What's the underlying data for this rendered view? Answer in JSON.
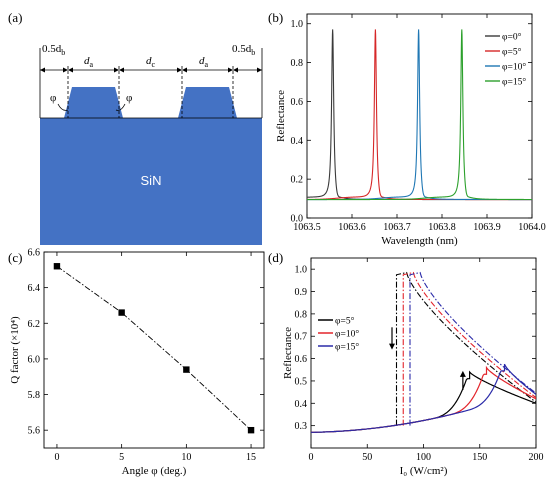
{
  "panels": {
    "a": {
      "label": "(a)",
      "substrate_label": "SiN",
      "dims": {
        "db_left": "0.5d",
        "db_left_sub": "b",
        "da_left": "d",
        "da_left_sub": "a",
        "dc": "d",
        "dc_sub": "c",
        "da_right": "d",
        "da_right_sub": "a",
        "db_right": "0.5d",
        "db_right_sub": "b"
      },
      "angle_symbol": "φ",
      "colors": {
        "fill": "#4472c4"
      }
    },
    "b": {
      "label": "(b)"
    },
    "c": {
      "label": "(c)"
    },
    "d": {
      "label": "(d)"
    }
  },
  "chart_data": [
    {
      "panel": "b",
      "type": "line",
      "xlabel": "Wavelength (nm)",
      "ylabel": "Reflectance",
      "xlim": [
        1063.5,
        1064.0
      ],
      "ylim": [
        0.0,
        1.05
      ],
      "xticks": [
        1063.5,
        1063.6,
        1063.7,
        1063.8,
        1063.9,
        1064.0
      ],
      "xtick_labels": [
        "1063.5",
        "1063.6",
        "1063.7",
        "1063.8",
        "1063.9",
        "1064.0"
      ],
      "yticks": [
        0.0,
        0.2,
        0.4,
        0.6,
        0.8,
        1.0
      ],
      "ytick_labels": [
        "0.0",
        "0.2",
        "0.4",
        "0.6",
        "0.8",
        "1.0"
      ],
      "legend_position": "top-right",
      "series": [
        {
          "name": "φ=0°",
          "color": "#3a3a3a",
          "peak": 1063.557,
          "dip": 1063.567,
          "peak_value": 0.98
        },
        {
          "name": "φ=5°",
          "color": "#d62728",
          "peak": 1063.652,
          "dip": 1063.662,
          "peak_value": 0.98
        },
        {
          "name": "φ=10°",
          "color": "#1f77b4",
          "peak": 1063.748,
          "dip": 1063.758,
          "peak_value": 0.98
        },
        {
          "name": "φ=15°",
          "color": "#2ca02c",
          "peak": 1063.844,
          "dip": 1063.854,
          "peak_value": 0.98
        }
      ]
    },
    {
      "panel": "c",
      "type": "scatter",
      "xlabel": "Angle φ (deg.)",
      "ylabel": "Q factor (×10⁴)",
      "xlim": [
        -1,
        16
      ],
      "ylim": [
        5.5,
        6.6
      ],
      "xticks": [
        0,
        5,
        10,
        15
      ],
      "xtick_labels": [
        "0",
        "5",
        "10",
        "15"
      ],
      "yticks": [
        5.6,
        5.8,
        6.0,
        6.2,
        6.4,
        6.6
      ],
      "ytick_labels": [
        "5.6",
        "5.8",
        "6.0",
        "6.2",
        "6.4",
        "6.6"
      ],
      "x": [
        0,
        5,
        10,
        15
      ],
      "y": [
        6.52,
        6.26,
        5.94,
        5.6
      ]
    },
    {
      "panel": "d",
      "type": "line",
      "xlabel": "I₀ (W/cm²)",
      "ylabel": "Reflectance",
      "xlim": [
        0,
        200
      ],
      "ylim": [
        0.2,
        1.05
      ],
      "xticks": [
        0,
        50,
        100,
        150,
        200
      ],
      "xtick_labels": [
        "0",
        "50",
        "100",
        "150",
        "200"
      ],
      "yticks": [
        0.3,
        0.4,
        0.5,
        0.6,
        0.7,
        0.8,
        0.9,
        1.0
      ],
      "ytick_labels": [
        "0.3",
        "0.4",
        "0.5",
        "0.6",
        "0.7",
        "0.8",
        "0.9",
        "1.0"
      ],
      "legend_position": "left",
      "series": [
        {
          "name": "φ=5°",
          "color": "#000000",
          "up": 141,
          "down": 76,
          "up_top": 0.54,
          "end": 0.4
        },
        {
          "name": "φ=10°",
          "color": "#e3242b",
          "up": 156,
          "down": 82,
          "up_top": 0.56,
          "end": 0.42
        },
        {
          "name": "φ=15°",
          "color": "#2a2aa8",
          "up": 172,
          "down": 88,
          "up_top": 0.575,
          "end": 0.44
        }
      ]
    }
  ]
}
